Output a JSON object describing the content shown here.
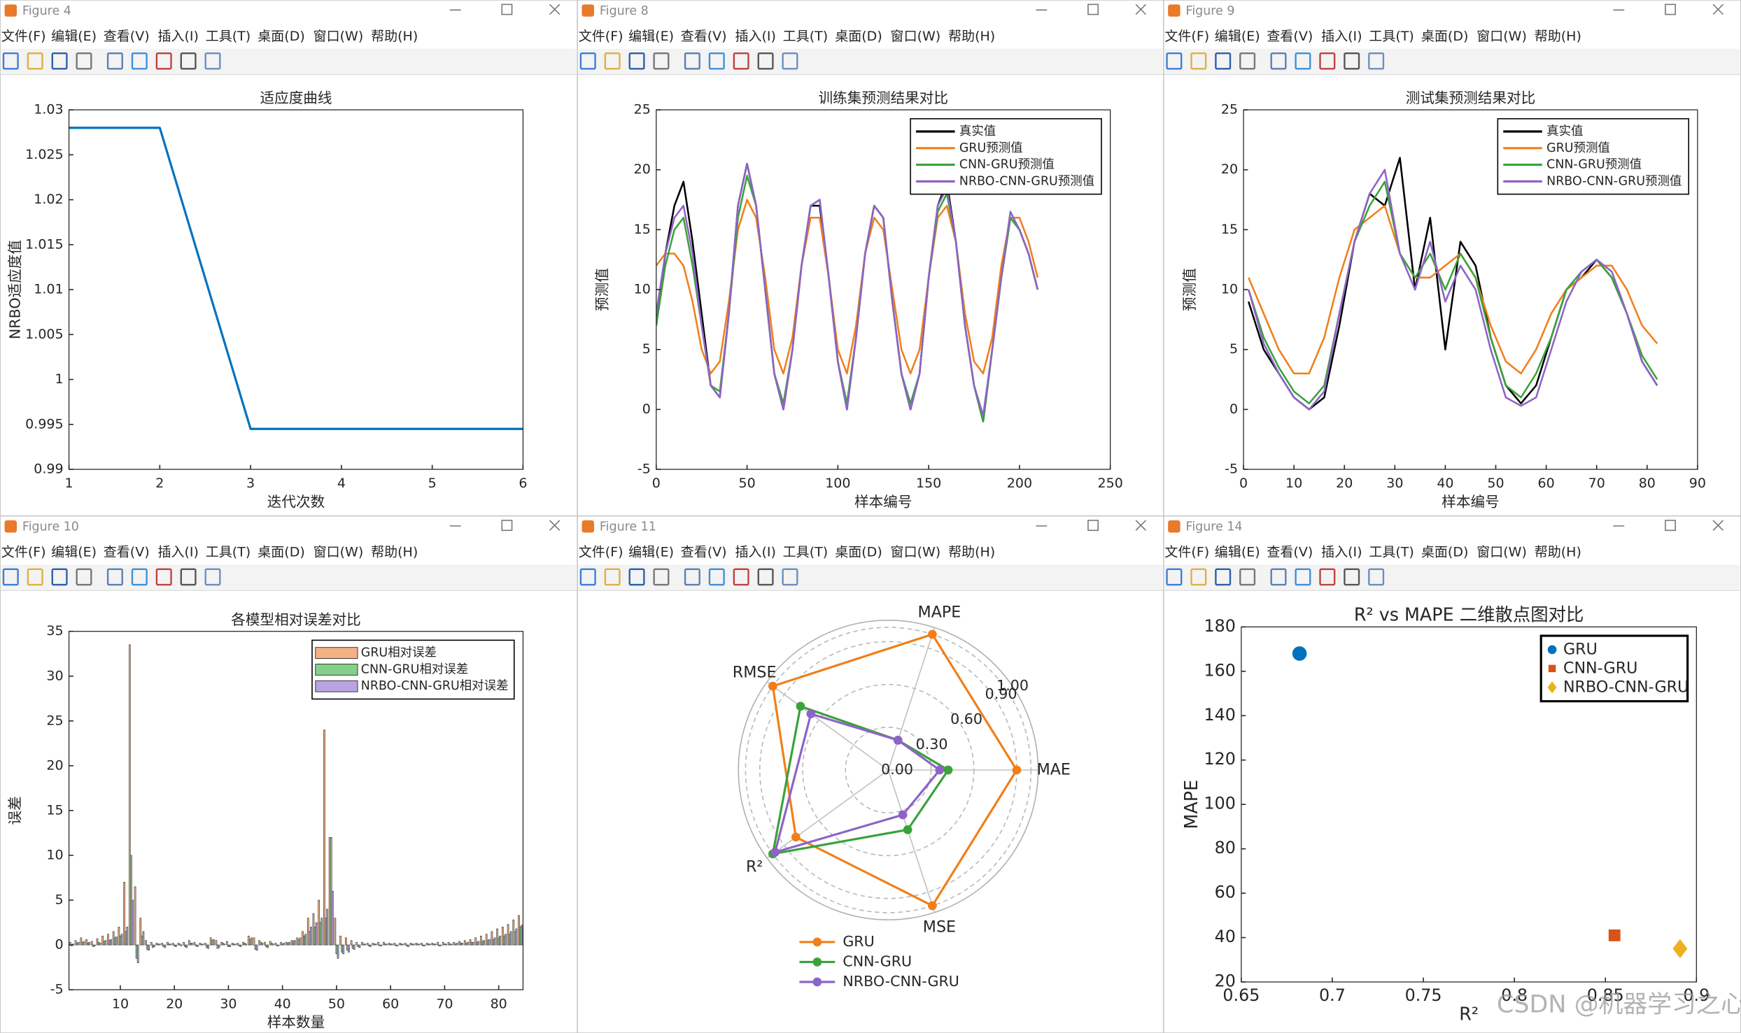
{
  "menu": [
    "文件(F)",
    "编辑(E)",
    "查看(V)",
    "插入(I)",
    "工具(T)",
    "桌面(D)",
    "窗口(W)",
    "帮助(H)"
  ],
  "windows": [
    {
      "title": "Figure 4"
    },
    {
      "title": "Figure 8"
    },
    {
      "title": "Figure 9"
    },
    {
      "title": "Figure 10"
    },
    {
      "title": "Figure 11"
    },
    {
      "title": "Figure 14"
    }
  ],
  "watermark": "CSDN @机器学习之心",
  "chart_data": [
    {
      "type": "line",
      "title": "适应度曲线",
      "xlabel": "迭代次数",
      "ylabel": "NRBO适应度值",
      "x": [
        1,
        2,
        3,
        4,
        5,
        6
      ],
      "values": [
        1.028,
        1.028,
        0.9945,
        0.9945,
        0.9945,
        0.9945
      ],
      "color": "#0072bd",
      "xlim": [
        1,
        6
      ],
      "xticks": [
        1,
        2,
        3,
        4,
        5,
        6
      ],
      "ylim": [
        0.99,
        1.03
      ],
      "yticks": [
        0.99,
        0.995,
        1,
        1.005,
        1.01,
        1.015,
        1.02,
        1.025,
        1.03
      ]
    },
    {
      "type": "line",
      "title": "训练集预测结果对比",
      "xlabel": "样本编号",
      "ylabel": "预测值",
      "legend": "northeast",
      "x": [
        0,
        5,
        10,
        15,
        20,
        25,
        30,
        35,
        40,
        45,
        50,
        55,
        60,
        65,
        70,
        75,
        80,
        85,
        90,
        95,
        100,
        105,
        110,
        115,
        120,
        125,
        130,
        135,
        140,
        145,
        150,
        155,
        160,
        165,
        170,
        175,
        180,
        185,
        190,
        195,
        200,
        205,
        210
      ],
      "series": [
        {
          "name": "真实值",
          "color": "#000000",
          "values": [
            7,
            13,
            17,
            19,
            14,
            8,
            2,
            1,
            8,
            17,
            20.5,
            17,
            10,
            3,
            0,
            5,
            12,
            17,
            17,
            11,
            4,
            0,
            6,
            13,
            17,
            16,
            9,
            3,
            0,
            3,
            11,
            17,
            19,
            14,
            7,
            2,
            -1,
            5,
            11,
            16,
            15,
            13,
            10
          ]
        },
        {
          "name": "GRU预测值",
          "color": "#f07f1a",
          "values": [
            12,
            13,
            13,
            12,
            9,
            5,
            3,
            4,
            9,
            15,
            17.5,
            16,
            11,
            5,
            3,
            6,
            12,
            16,
            16,
            11,
            5,
            3,
            7,
            13,
            16,
            15,
            10,
            5,
            3,
            5,
            11,
            16,
            17,
            14,
            8,
            4,
            3,
            6,
            12,
            16,
            16,
            14,
            11
          ]
        },
        {
          "name": "CNN-GRU预测值",
          "color": "#3aa23a",
          "values": [
            7,
            12,
            15,
            16,
            12,
            7,
            2,
            1.5,
            8,
            16,
            19.5,
            17,
            10,
            3,
            0.5,
            5,
            12,
            17,
            17.5,
            11,
            4,
            0.5,
            6,
            13,
            17,
            16,
            9,
            3,
            0.5,
            3,
            11,
            16.5,
            18,
            14,
            7,
            2,
            -1,
            5,
            11,
            16,
            15,
            13,
            10
          ]
        },
        {
          "name": "NRBO-CNN-GRU预测值",
          "color": "#8e63c7",
          "values": [
            8,
            13,
            16,
            17,
            13,
            7,
            2,
            1,
            8,
            17,
            20.5,
            17,
            10,
            3,
            0,
            5,
            12,
            17,
            17.5,
            11,
            4,
            0,
            6,
            13,
            17,
            16,
            9,
            3,
            0,
            3,
            11,
            17,
            18.5,
            14,
            7,
            2,
            -0.5,
            5,
            11,
            16.5,
            15,
            13,
            10
          ]
        }
      ],
      "xlim": [
        0,
        250
      ],
      "xticks": [
        0,
        50,
        100,
        150,
        200,
        250
      ],
      "ylim": [
        -5,
        25
      ],
      "yticks": [
        -5,
        0,
        5,
        10,
        15,
        20,
        25
      ]
    },
    {
      "type": "line",
      "title": "测试集预测结果对比",
      "xlabel": "样本编号",
      "ylabel": "预测值",
      "legend": "northeast",
      "x": [
        1,
        4,
        7,
        10,
        13,
        16,
        19,
        22,
        25,
        28,
        31,
        34,
        37,
        40,
        43,
        46,
        49,
        52,
        55,
        58,
        61,
        64,
        67,
        70,
        73,
        76,
        79,
        82
      ],
      "series": [
        {
          "name": "真实值",
          "color": "#000000",
          "values": [
            9,
            5,
            3,
            1,
            0,
            1,
            7,
            14,
            18,
            17,
            21,
            10,
            16,
            5,
            14,
            12,
            6,
            2,
            0.5,
            2,
            6,
            10,
            11,
            12.5,
            11,
            8,
            4,
            2
          ]
        },
        {
          "name": "GRU预测值",
          "color": "#f07f1a",
          "values": [
            11,
            8,
            5,
            3,
            3,
            6,
            11,
            15,
            16,
            17,
            13,
            11,
            11,
            12,
            13,
            11,
            7,
            4,
            3,
            5,
            8,
            10,
            11,
            12,
            12,
            10,
            7,
            5.5
          ]
        },
        {
          "name": "CNN-GRU预测值",
          "color": "#3aa23a",
          "values": [
            10,
            6,
            3.5,
            1.5,
            0.5,
            2,
            8,
            14,
            17,
            19,
            13,
            11,
            13,
            10,
            13,
            11,
            6,
            2,
            1,
            3,
            6,
            10,
            11.5,
            12.5,
            11,
            8,
            4.5,
            2.5
          ]
        },
        {
          "name": "NRBO-CNN-GRU预测值",
          "color": "#8e63c7",
          "values": [
            10,
            5.5,
            3,
            1,
            0,
            1.5,
            8,
            14,
            18,
            20,
            13,
            10,
            14,
            9,
            12,
            10,
            5,
            1,
            0.3,
            1,
            5,
            9,
            11.5,
            12.5,
            11.5,
            8,
            4,
            2
          ]
        }
      ],
      "xlim": [
        0,
        90
      ],
      "xticks": [
        0,
        10,
        20,
        30,
        40,
        50,
        60,
        70,
        80,
        90
      ],
      "ylim": [
        -5,
        25
      ],
      "yticks": [
        -5,
        0,
        5,
        10,
        15,
        20,
        25
      ]
    },
    {
      "type": "bar",
      "title": "各模型相对误差对比",
      "xlabel": "样本数量",
      "ylabel": "误差",
      "legend": "northeast",
      "x": [
        1,
        2,
        3,
        4,
        5,
        6,
        7,
        8,
        9,
        10,
        11,
        12,
        13,
        14,
        15,
        16,
        17,
        18,
        19,
        20,
        21,
        22,
        23,
        24,
        25,
        26,
        27,
        28,
        29,
        30,
        31,
        32,
        33,
        34,
        35,
        36,
        37,
        38,
        39,
        40,
        41,
        42,
        43,
        44,
        45,
        46,
        47,
        48,
        49,
        50,
        51,
        52,
        53,
        54,
        55,
        56,
        57,
        58,
        59,
        60,
        61,
        62,
        63,
        64,
        65,
        66,
        67,
        68,
        69,
        70,
        71,
        72,
        73,
        74,
        75,
        76,
        77,
        78,
        79,
        80,
        81,
        82,
        83,
        84
      ],
      "series": [
        {
          "name": "GRU相对误差",
          "color": "#f4b183",
          "values": [
            0.3,
            0.5,
            0.8,
            0.6,
            0.4,
            0.7,
            1.0,
            1.2,
            1.5,
            2.0,
            7.0,
            33.5,
            6.5,
            3.0,
            0.5,
            0.3,
            0.2,
            0.2,
            0.3,
            0.2,
            0.2,
            0.3,
            0.5,
            0.3,
            0.2,
            0.2,
            0.8,
            0.5,
            0.3,
            0.4,
            0.2,
            0.2,
            0.3,
            1.0,
            0.8,
            0.5,
            0.3,
            0.4,
            0.2,
            0.3,
            0.3,
            0.5,
            0.8,
            1.5,
            3.0,
            3.5,
            5.0,
            24.0,
            12.0,
            3.0,
            1.0,
            0.8,
            0.5,
            0.3,
            0.3,
            0.2,
            0.2,
            0.3,
            0.3,
            0.2,
            0.2,
            0.2,
            0.2,
            0.2,
            0.2,
            0.2,
            0.2,
            0.2,
            0.3,
            0.3,
            0.3,
            0.3,
            0.4,
            0.5,
            0.6,
            0.8,
            1.0,
            1.2,
            1.5,
            1.8,
            2.0,
            2.3,
            2.8,
            3.3
          ]
        },
        {
          "name": "CNN-GRU相对误差",
          "color": "#86cf8b",
          "values": [
            -0.1,
            0.2,
            0.3,
            0.2,
            -0.2,
            0.3,
            0.4,
            0.5,
            0.8,
            1.0,
            1.5,
            10.0,
            -1.5,
            1.0,
            -0.5,
            -0.3,
            0.1,
            -0.2,
            0.1,
            -0.1,
            0.1,
            -0.2,
            0.2,
            -0.1,
            0.1,
            -0.3,
            0.5,
            -0.4,
            0.2,
            -0.2,
            0.1,
            -0.1,
            0.2,
            0.6,
            -0.5,
            0.3,
            -0.2,
            0.2,
            -0.1,
            0.1,
            0.2,
            0.4,
            0.6,
            1.0,
            1.5,
            2.0,
            2.5,
            3.0,
            12.0,
            -1.0,
            -0.8,
            -0.6,
            -0.4,
            -0.2,
            0.1,
            -0.1,
            0.1,
            -0.1,
            0.1,
            0.1,
            -0.1,
            0.1,
            -0.1,
            0.1,
            0.1,
            -0.1,
            0.1,
            0.1,
            -0.1,
            0.1,
            0.1,
            0.1,
            0.2,
            0.2,
            0.3,
            0.3,
            0.4,
            0.5,
            0.6,
            0.8,
            1.0,
            1.2,
            1.5,
            2.0
          ]
        },
        {
          "name": "NRBO-CNN-GRU相对误差",
          "color": "#b9a3e3",
          "values": [
            0.1,
            0.3,
            0.4,
            0.3,
            -0.1,
            0.2,
            0.5,
            0.6,
            0.9,
            1.2,
            2.0,
            5.0,
            -2.0,
            1.5,
            -0.6,
            -0.2,
            0.1,
            -0.3,
            0.1,
            -0.2,
            -0.1,
            -0.3,
            0.2,
            -0.2,
            0.1,
            -0.4,
            0.6,
            -0.3,
            0.1,
            -0.2,
            0.1,
            -0.2,
            0.1,
            0.8,
            -0.6,
            0.2,
            -0.3,
            0.1,
            -0.1,
            0.2,
            0.3,
            0.5,
            0.8,
            1.2,
            2.0,
            2.5,
            3.0,
            4.0,
            6.0,
            -1.5,
            -1.0,
            -0.8,
            -0.5,
            -0.3,
            0.1,
            -0.2,
            0.1,
            -0.1,
            0.1,
            0.1,
            -0.1,
            0.1,
            -0.2,
            0.1,
            0.1,
            -0.1,
            0.1,
            0.1,
            -0.1,
            0.1,
            0.1,
            0.2,
            0.2,
            0.3,
            0.3,
            0.4,
            0.5,
            0.6,
            0.8,
            1.0,
            1.2,
            1.5,
            1.8,
            2.2
          ]
        }
      ],
      "xlim": [
        0.5,
        84.5
      ],
      "xticks": [
        10,
        20,
        30,
        40,
        50,
        60,
        70,
        80
      ],
      "ylim": [
        -5,
        35
      ],
      "yticks": [
        -5,
        0,
        5,
        10,
        15,
        20,
        25,
        30,
        35
      ]
    },
    {
      "type": "radar",
      "legend": "south",
      "axes": [
        "MAE",
        "MAPE",
        "RMSE",
        "R²",
        "MSE"
      ],
      "rlim": [
        0,
        1.05
      ],
      "rticks": [
        {
          "value": 0,
          "label": "0.00"
        },
        {
          "value": 0.3,
          "label": "0.30"
        },
        {
          "value": 0.6,
          "label": "0.60"
        },
        {
          "value": 0.9,
          "label": "0.90"
        },
        {
          "value": 1,
          "label": "1.00"
        }
      ],
      "series": [
        {
          "name": "GRU",
          "color": "#f07f1a",
          "values": [
            0.9,
            1.0,
            1.0,
            0.8,
            1.0
          ]
        },
        {
          "name": "CNN-GRU",
          "color": "#3aa23a",
          "values": [
            0.42,
            0.22,
            0.76,
            1.0,
            0.44
          ]
        },
        {
          "name": "NRBO-CNN-GRU",
          "color": "#8e63c7",
          "values": [
            0.36,
            0.22,
            0.67,
            0.98,
            0.33
          ]
        }
      ]
    },
    {
      "type": "scatter",
      "title": "R² vs MAPE 二维散点图对比",
      "xlabel": "R²",
      "ylabel": "MAPE",
      "legend": "northeast",
      "series": [
        {
          "name": "GRU",
          "color": "#0072bd",
          "marker": "o",
          "x": [
            0.682
          ],
          "values": [
            168
          ]
        },
        {
          "name": "CNN-GRU",
          "color": "#d95319",
          "marker": "s",
          "x": [
            0.855
          ],
          "values": [
            41
          ]
        },
        {
          "name": "NRBO-CNN-GRU",
          "color": "#edb120",
          "marker": "d",
          "x": [
            0.891
          ],
          "values": [
            35
          ]
        }
      ],
      "xlim": [
        0.65,
        0.9
      ],
      "xticks": [
        0.65,
        0.7,
        0.75,
        0.8,
        0.85,
        0.9
      ],
      "ylim": [
        20,
        180
      ],
      "yticks": [
        20,
        40,
        60,
        80,
        100,
        120,
        140,
        160,
        180
      ]
    }
  ]
}
